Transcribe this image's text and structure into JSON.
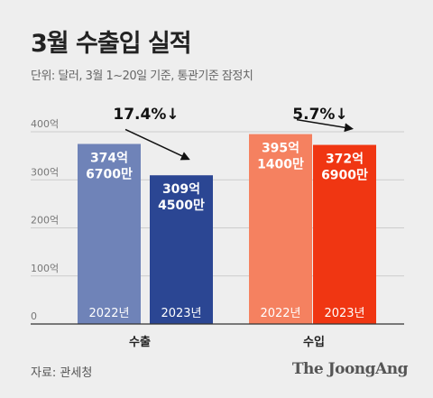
{
  "title": "3월 수출입 실적",
  "subtitle": "단위: 달러, 3월 1~20일 기준, 통관기준 잠정치",
  "source": "자료: 관세청",
  "brand": "The JoongAng",
  "colors": {
    "export_2022": "#6f83b8",
    "export_2023": "#2b4693",
    "import_2022": "#f58160",
    "import_2023": "#f03612",
    "axis": "#333333",
    "grid": "#cccccc",
    "text": "#333333"
  },
  "chart_data": {
    "type": "bar",
    "ylim": [
      0,
      400
    ],
    "yticks": [
      {
        "value": 0,
        "label": "0"
      },
      {
        "value": 100,
        "label": "100억"
      },
      {
        "value": 200,
        "label": "200억"
      },
      {
        "value": 300,
        "label": "300억"
      },
      {
        "value": 400,
        "label": "400억"
      }
    ],
    "groups": [
      {
        "name": "수출",
        "change": "17.4%↓",
        "bars": [
          {
            "year": "2022년",
            "value": 374.67,
            "label_line1": "374억",
            "label_line2": "6700만",
            "color_key": "export_2022"
          },
          {
            "year": "2023년",
            "value": 309.45,
            "label_line1": "309억",
            "label_line2": "4500만",
            "color_key": "export_2023"
          }
        ]
      },
      {
        "name": "수입",
        "change": "5.7%↓",
        "bars": [
          {
            "year": "2022년",
            "value": 395.14,
            "label_line1": "395억",
            "label_line2": "1400만",
            "color_key": "import_2022"
          },
          {
            "year": "2023년",
            "value": 372.69,
            "label_line1": "372억",
            "label_line2": "6900만",
            "color_key": "import_2023"
          }
        ]
      }
    ]
  }
}
